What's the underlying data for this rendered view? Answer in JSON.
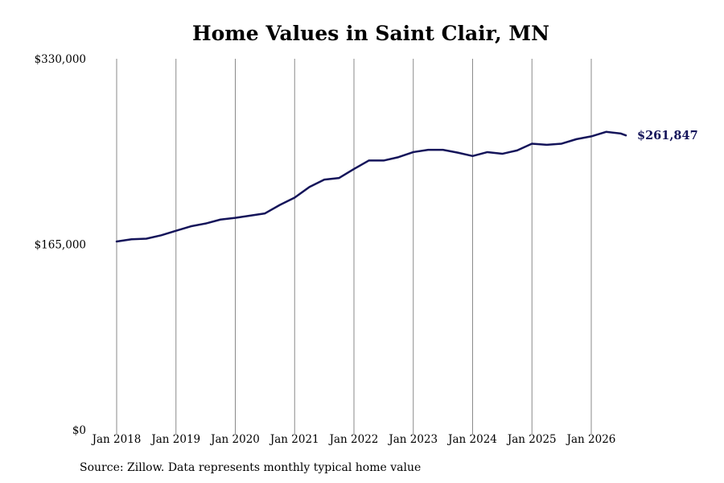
{
  "chart_data": {
    "type": "line",
    "title": "Home Values in Saint Clair, MN",
    "source": "Source: Zillow. Data represents monthly typical home value",
    "xlabel": "",
    "ylabel": "",
    "ylim": [
      0,
      330000
    ],
    "y_ticks": [
      0,
      165000,
      330000
    ],
    "y_tick_labels": [
      "$0",
      "$165,000",
      "$330,000"
    ],
    "x_ticks": [
      "2018-01",
      "2019-01",
      "2020-01",
      "2021-01",
      "2022-01",
      "2023-01",
      "2024-01",
      "2025-01",
      "2026-01"
    ],
    "x_tick_labels": [
      "Jan 2018",
      "Jan 2019",
      "Jan 2020",
      "Jan 2021",
      "Jan 2022",
      "Jan 2023",
      "Jan 2024",
      "Jan 2025",
      "Jan 2026"
    ],
    "grid": {
      "vertical": true,
      "horizontal": false
    },
    "line_color": "#14145a",
    "end_label": "$261,847",
    "series": [
      {
        "points": [
          [
            "2018-01",
            167500
          ],
          [
            "2018-04",
            169500
          ],
          [
            "2018-07",
            170000
          ],
          [
            "2018-10",
            173000
          ],
          [
            "2019-01",
            177000
          ],
          [
            "2019-04",
            181000
          ],
          [
            "2019-07",
            183500
          ],
          [
            "2019-10",
            187000
          ],
          [
            "2020-01",
            188500
          ],
          [
            "2020-04",
            190500
          ],
          [
            "2020-07",
            192500
          ],
          [
            "2020-10",
            200000
          ],
          [
            "2021-01",
            206500
          ],
          [
            "2021-04",
            216000
          ],
          [
            "2021-07",
            222500
          ],
          [
            "2021-10",
            224000
          ],
          [
            "2022-01",
            232000
          ],
          [
            "2022-04",
            239500
          ],
          [
            "2022-07",
            239500
          ],
          [
            "2022-10",
            242500
          ],
          [
            "2023-01",
            247000
          ],
          [
            "2023-04",
            249000
          ],
          [
            "2023-07",
            249000
          ],
          [
            "2023-10",
            246500
          ],
          [
            "2024-01",
            243500
          ],
          [
            "2024-04",
            247000
          ],
          [
            "2024-07",
            245500
          ],
          [
            "2024-10",
            248500
          ],
          [
            "2025-01",
            254500
          ],
          [
            "2025-04",
            253500
          ],
          [
            "2025-07",
            254500
          ],
          [
            "2025-10",
            258500
          ],
          [
            "2026-01",
            261000
          ],
          [
            "2026-04",
            265000
          ],
          [
            "2026-07",
            263500
          ],
          [
            "2026-08",
            261847
          ]
        ]
      }
    ]
  }
}
